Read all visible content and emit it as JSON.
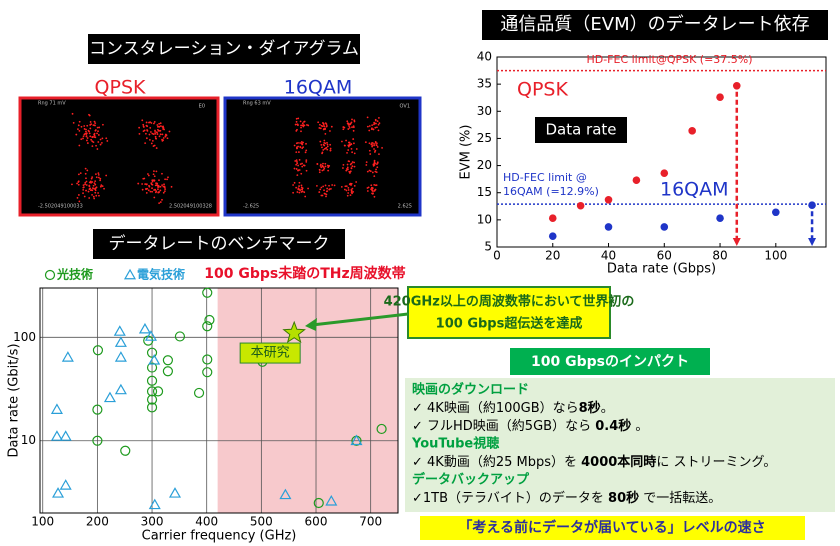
{
  "titles": {
    "constellation": "コンスタレーション・ダイアグラム",
    "benchmark": "データレートのベンチマーク"
  },
  "constellation": {
    "labels": [
      "QPSK",
      "16QAM"
    ],
    "screens": [
      {
        "top_left": "Rng 71 mV",
        "top_right": "E0",
        "bottom_left": "-2.502049100033",
        "bottom_right": "2.502049100328"
      },
      {
        "top_left": "Rng 63 mV",
        "top_right": "OV1",
        "bottom_left": "-2.625",
        "bottom_right": "2.625"
      }
    ]
  },
  "chart_data": [
    {
      "type": "scatter",
      "title": "通信品質（EVM）のデータレート依存",
      "x_label": "Data rate (Gbps)",
      "y_label": "EVM (%)",
      "xlim": [
        0,
        118
      ],
      "xticks": [
        0,
        20,
        40,
        60,
        80,
        100
      ],
      "ylim": [
        5,
        40
      ],
      "yticks": [
        5,
        10,
        15,
        20,
        25,
        30,
        35,
        40
      ],
      "series": [
        {
          "name": "QPSK",
          "color": "#e8202a",
          "x": [
            20,
            30,
            40,
            50,
            60,
            70,
            80,
            86
          ],
          "values": [
            10.3,
            12.6,
            13.7,
            17.3,
            18.6,
            26.4,
            32.6,
            34.7
          ]
        },
        {
          "name": "16QAM",
          "color": "#1f35c8",
          "x": [
            20,
            40,
            60,
            80,
            100,
            113
          ],
          "values": [
            7.0,
            8.7,
            8.7,
            10.3,
            11.4,
            12.7
          ]
        }
      ],
      "hlines": [
        {
          "value": 37.5,
          "label": [
            "HD-FEC limit@QPSK (=37.5%)"
          ],
          "color": "#e8202a"
        },
        {
          "value": 12.9,
          "label": [
            "HD-FEC limit @",
            "16QAM (=12.9%)"
          ],
          "color": "#1f35c8"
        }
      ],
      "annotation": "Data rate"
    },
    {
      "type": "scatter",
      "log_y": true,
      "grid": true,
      "legend": "top-left",
      "x_label": "Carrier frequency (GHz)",
      "y_label": "Data rate (Gbit/s)",
      "xlim": [
        95,
        750
      ],
      "xticks": [
        100,
        200,
        300,
        400,
        500,
        600,
        700
      ],
      "ylim": [
        2,
        300
      ],
      "yticks": [
        10,
        100
      ],
      "shaded": {
        "x": [
          420,
          750
        ],
        "label": "100 Gbps未踏のTHz周波数帯",
        "color": "#f7c9cc"
      },
      "series": [
        {
          "name": "光技術",
          "marker": "circle",
          "color": "#1e9a1e",
          "x": [
            201,
            200,
            200,
            251,
            293,
            300,
            300,
            300,
            300,
            300,
            300,
            311,
            329,
            329,
            351,
            386,
            401,
            401,
            405,
            401,
            401,
            502,
            605,
            674,
            720
          ],
          "values": [
            75,
            20,
            10,
            8,
            93,
            71,
            51,
            38,
            30,
            25,
            21,
            30,
            60,
            47,
            102,
            29,
            270,
            128,
            147,
            61,
            46,
            58,
            2.5,
            10,
            13
          ]
        },
        {
          "name": "電気技術",
          "marker": "triangle",
          "color": "#2a9fd8",
          "x": [
            126,
            126,
            142,
            146,
            128,
            142,
            223,
            241,
            243,
            243,
            243,
            287,
            298,
            304,
            305,
            342,
            544,
            628,
            674
          ],
          "values": [
            20,
            11,
            11,
            64,
            3.1,
            3.7,
            26,
            114,
            89,
            64,
            31,
            120,
            102,
            60,
            2.4,
            3.1,
            3.0,
            2.6,
            10
          ]
        },
        {
          "name": "本研究",
          "marker": "star",
          "color": "#b5e000",
          "x": [
            560
          ],
          "values": [
            110
          ]
        }
      ]
    }
  ],
  "callout": [
    "420GHz以上の周波数帯において世界初の",
    "100 Gbps超伝送を達成"
  ],
  "impact": {
    "title": "100 Gbpsのインパクト",
    "sections": [
      {
        "heading": "映画のダウンロード",
        "items": [
          [
            "✓ 4K映画（約100GB）なら",
            "8秒",
            "。"
          ],
          [
            "✓ フルHD映画（約5GB）なら ",
            "0.4秒",
            " 。"
          ]
        ]
      },
      {
        "heading": "YouTube視聴",
        "items": [
          [
            "✓  4K動画（約25 Mbps）を ",
            "4000本同時",
            "に ストリーミング。"
          ]
        ]
      },
      {
        "heading": "データバックアップ",
        "items": [
          [
            "✓1TB（テラバイト）のデータを ",
            "80秒",
            " で一括転送。"
          ]
        ]
      }
    ]
  },
  "footer": "「考える前にデータが届いている」レベルの速さ"
}
